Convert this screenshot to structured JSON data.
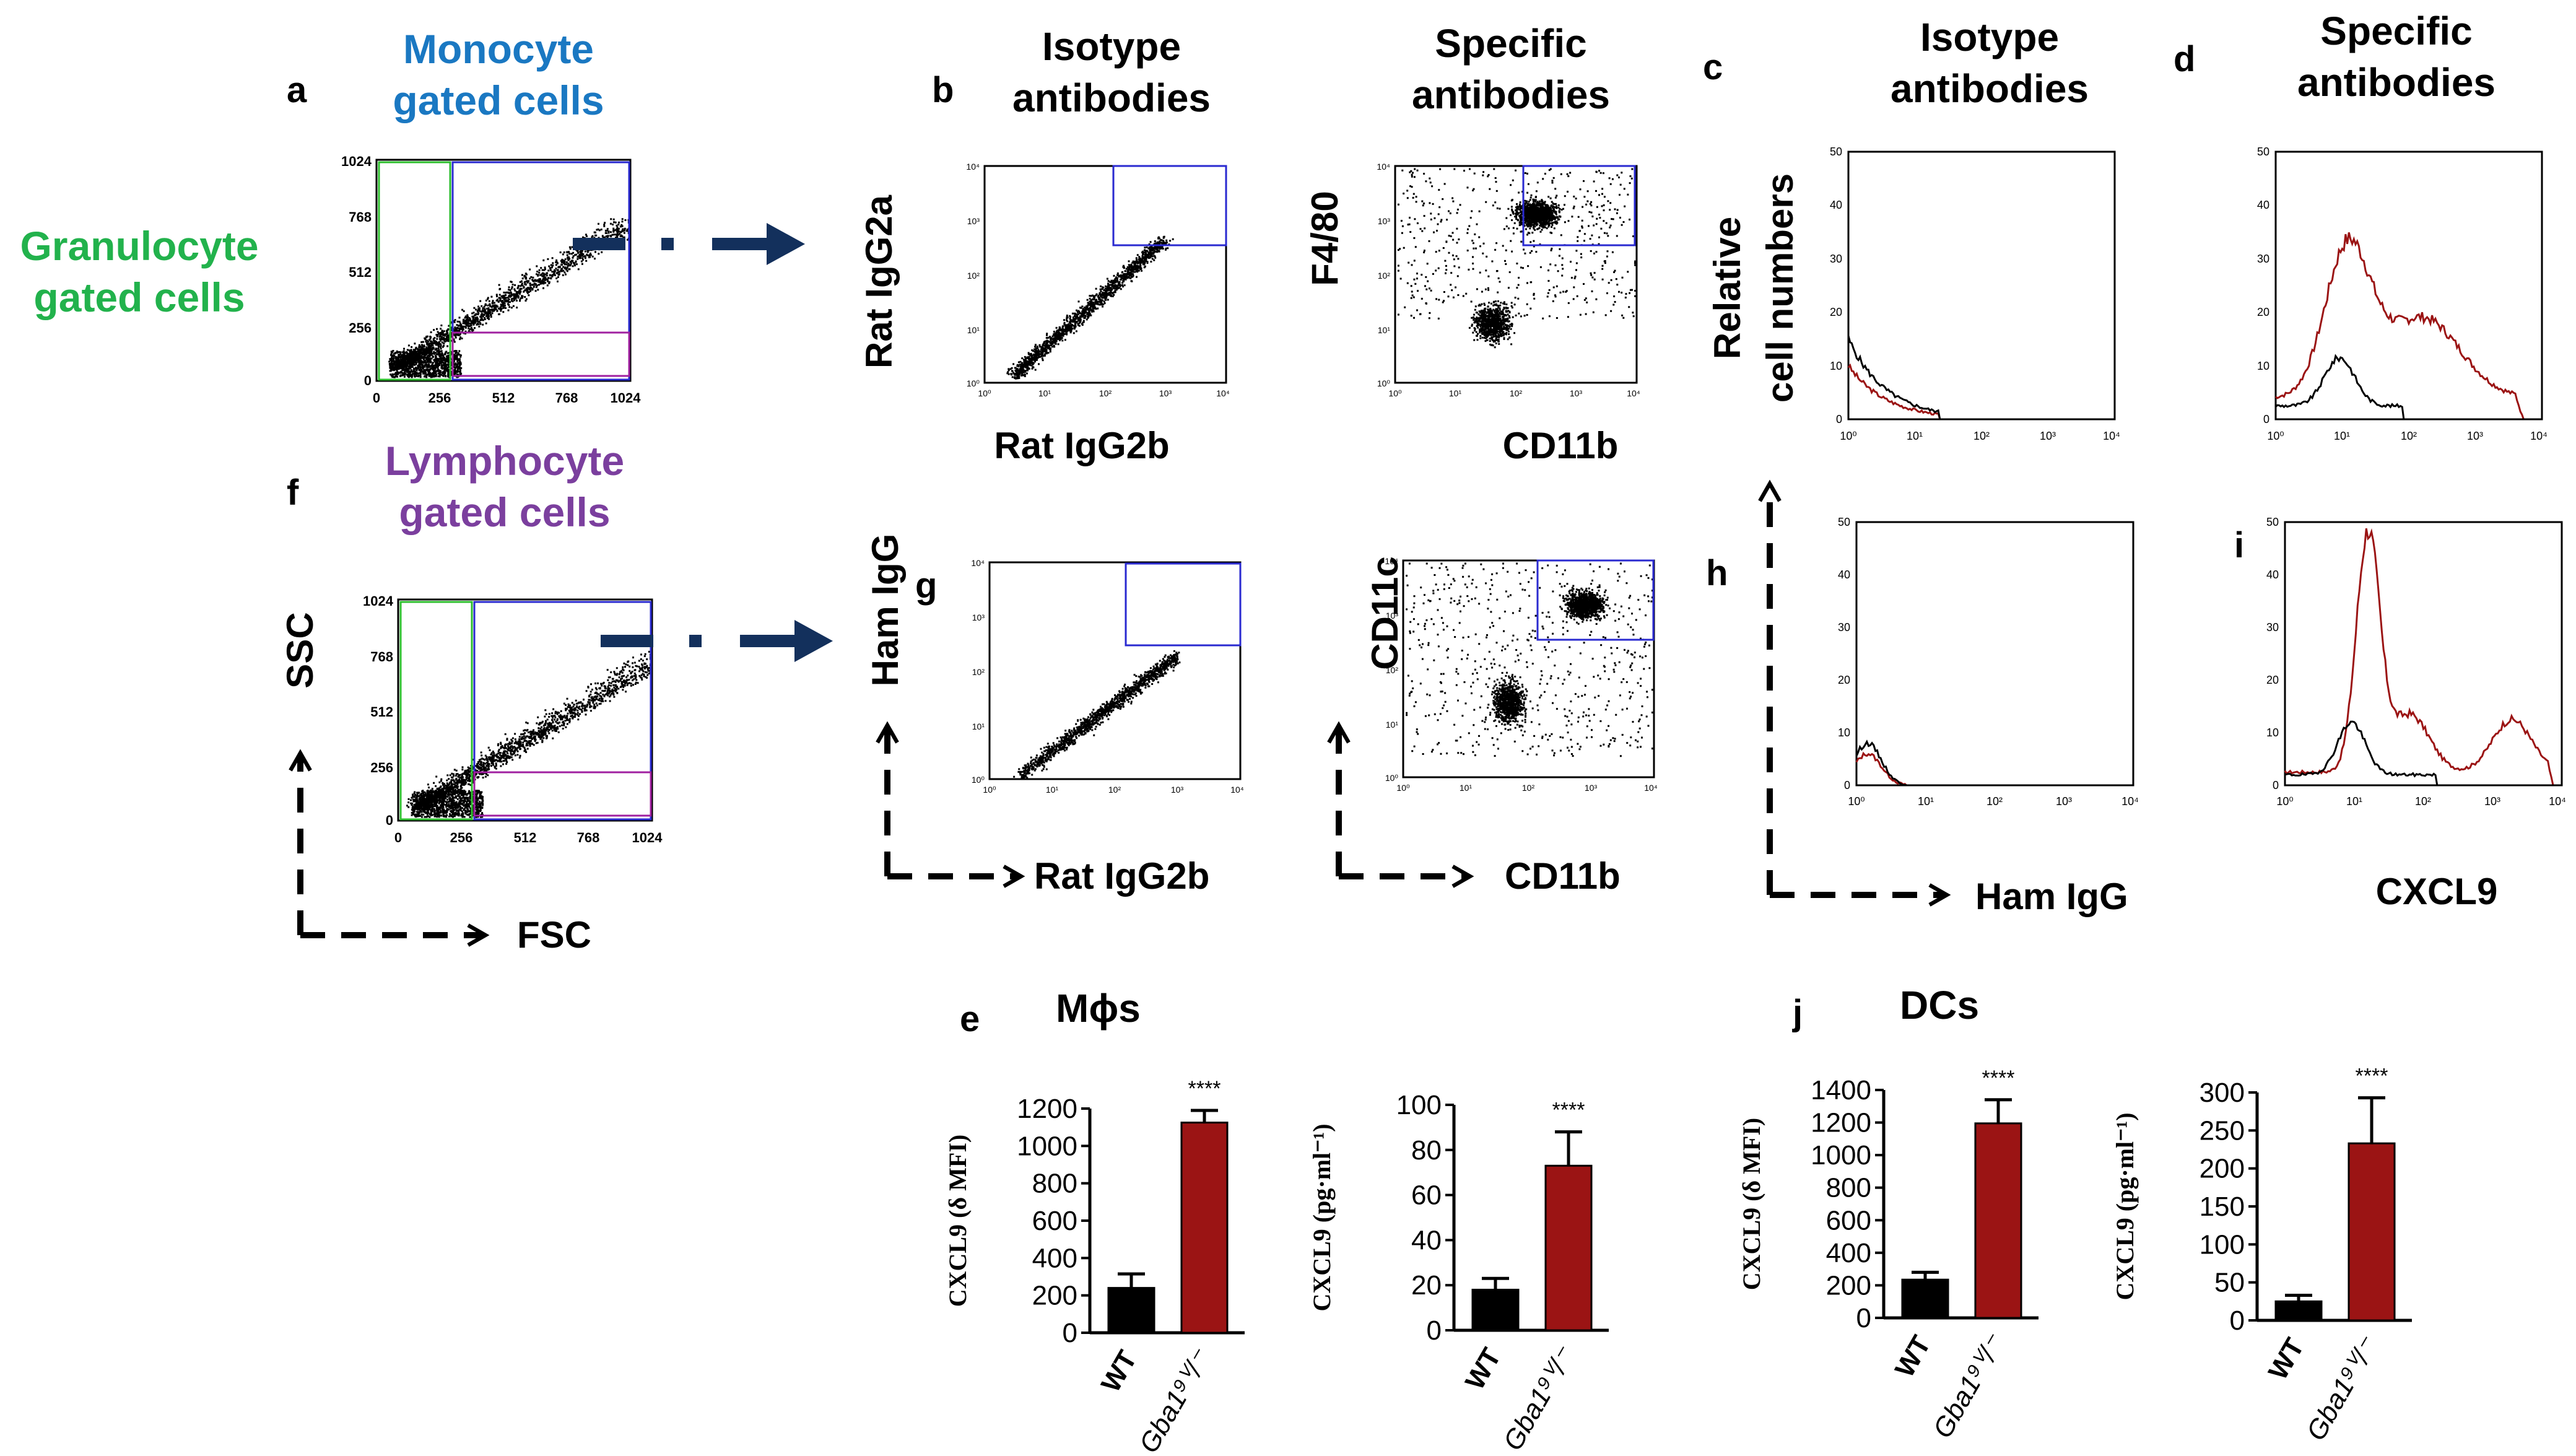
{
  "panel_letters": {
    "a": "a",
    "b": "b",
    "c": "c",
    "d": "d",
    "e": "e",
    "f": "f",
    "g": "g",
    "h": "h",
    "i": "i",
    "j": "j"
  },
  "headers": {
    "monocyte": [
      "Monocyte",
      "gated cells"
    ],
    "granulocyte": [
      "Granulocyte",
      "gated cells"
    ],
    "lymphocyte": [
      "Lymphocyte",
      "gated cells"
    ],
    "isotype": [
      "Isotype",
      "antibodies"
    ],
    "specific": [
      "Specific",
      "antibodies"
    ],
    "relative": [
      "Relative",
      "cell numbers"
    ]
  },
  "colors": {
    "monocyte": "#1a78c2",
    "granulocyte": "#22b24c",
    "lymphocyte": "#7b3f9e",
    "gate_blue": "#2a2ad0",
    "gate_green": "#2ec02e",
    "gate_purple": "#a020a0",
    "arrow_navy": "#13305c",
    "red": "#9b1414",
    "black": "#000000"
  },
  "axis_labels": {
    "ssc": "SSC",
    "fsc": "FSC",
    "rat_igg2a": "Rat IgG2a",
    "rat_igg2b": "Rat IgG2b",
    "f480": "F4/80",
    "cd11b": "CD11b",
    "ham_igg": "Ham IgG",
    "cd11c": "CD11c",
    "cxcl9": "CXCL9"
  },
  "scatter_ticks": [
    "0",
    "256",
    "512",
    "768",
    "1024"
  ],
  "scatter_tick_labels": [
    "0",
    "256",
    "512",
    "768",
    "1024"
  ],
  "log_ticks": [
    "10⁰",
    "10¹",
    "10²",
    "10³",
    "10⁴"
  ],
  "small_log_ticks": [
    "10⁰",
    "10¹",
    "10²",
    "10³",
    "10⁴"
  ],
  "histogram_y_ticks": [
    "0",
    "10",
    "20",
    "30",
    "40",
    "50"
  ],
  "section_titles": {
    "macrophages": "Mϕs",
    "dcs": "DCs"
  },
  "chart_data": [
    {
      "id": "e1",
      "type": "bar",
      "title": "Mϕs",
      "ylabel": "CXCL9 (δ MFI)",
      "categories": [
        "WT",
        "Gba1⁹ⱽ/⁻"
      ],
      "values": [
        240,
        1125
      ],
      "errors": [
        75,
        65
      ],
      "ylim": [
        0,
        1200
      ],
      "yticks": [
        "0",
        "200",
        "400",
        "600",
        "800",
        "1000",
        "1200"
      ],
      "significance": "****"
    },
    {
      "id": "e2",
      "type": "bar",
      "title": "Mϕs",
      "ylabel": "CXCL9 (pg·ml⁻¹)",
      "categories": [
        "WT",
        "Gba1⁹ⱽ/⁻"
      ],
      "values": [
        18,
        73
      ],
      "errors": [
        5,
        15
      ],
      "ylim": [
        0,
        100
      ],
      "yticks": [
        "0",
        "20",
        "40",
        "60",
        "80",
        "100"
      ],
      "significance": "****"
    },
    {
      "id": "j1",
      "type": "bar",
      "title": "DCs",
      "ylabel": "CXCL9 (δ MFI)",
      "categories": [
        "WT",
        "Gba1⁹ⱽ/⁻"
      ],
      "values": [
        235,
        1195
      ],
      "errors": [
        45,
        145
      ],
      "ylim": [
        0,
        1400
      ],
      "yticks": [
        "0",
        "200",
        "400",
        "600",
        "800",
        "1000",
        "1200",
        "1400"
      ],
      "significance": "****"
    },
    {
      "id": "j2",
      "type": "bar",
      "title": "DCs",
      "ylabel": "CXCL9 (pg·ml⁻¹)",
      "categories": [
        "WT",
        "Gba1⁹ⱽ/⁻"
      ],
      "values": [
        25,
        233
      ],
      "errors": [
        8,
        60
      ],
      "ylim": [
        0,
        300
      ],
      "yticks": [
        "0",
        "50",
        "100",
        "150",
        "200",
        "250",
        "300"
      ],
      "significance": "****"
    }
  ]
}
